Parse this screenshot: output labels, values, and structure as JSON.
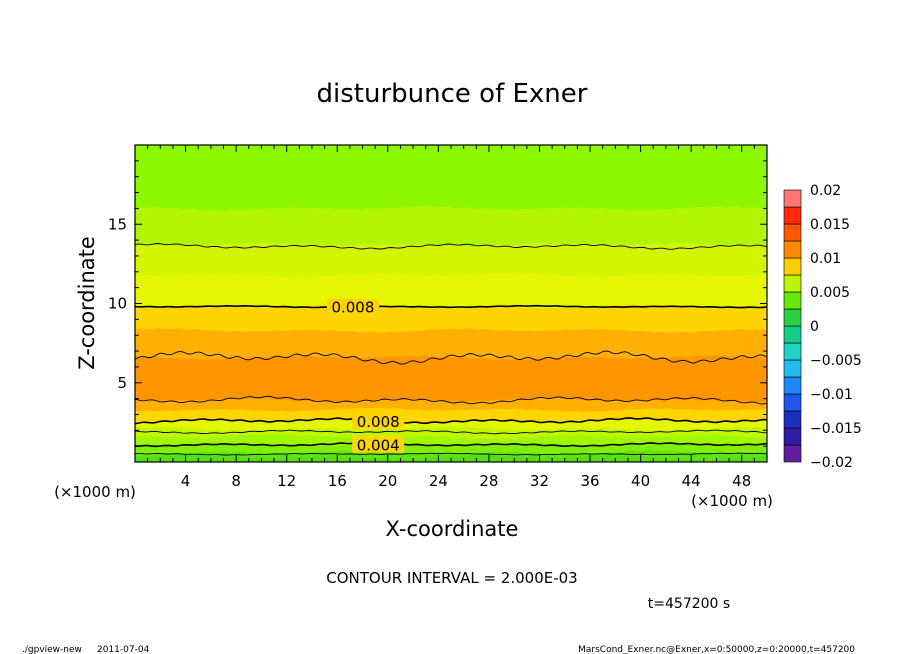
{
  "chart_data": {
    "type": "heatmap",
    "title": "disturbunce of Exner",
    "xlabel": "X-coordinate",
    "ylabel": "Z-coordinate",
    "x_unit": "(×1000 m)",
    "y_unit": "(×1000 m)",
    "xlim": [
      0,
      50
    ],
    "ylim": [
      0,
      20
    ],
    "x_ticks": [
      "4",
      "8",
      "12",
      "16",
      "20",
      "24",
      "28",
      "32",
      "36",
      "40",
      "44",
      "48"
    ],
    "y_ticks": [
      "5",
      "10",
      "15"
    ],
    "colorbar": {
      "ticks": [
        "0.02",
        "0.015",
        "0.01",
        "0.005",
        "0",
        "−0.005",
        "−0.01",
        "−0.015",
        "−0.02"
      ],
      "range": [
        -0.02,
        0.02
      ]
    },
    "bands": [
      {
        "z_top": 20.0,
        "value": 0.005
      },
      {
        "z_top": 16.0,
        "value": 0.006
      },
      {
        "z_top": 13.7,
        "value": 0.007
      },
      {
        "z_top": 11.8,
        "value": 0.0075
      },
      {
        "z_top": 9.8,
        "value": 0.0085
      },
      {
        "z_top": 8.3,
        "value": 0.0095
      },
      {
        "z_top": 6.6,
        "value": 0.0105
      },
      {
        "z_top": 3.9,
        "value": 0.0095
      },
      {
        "z_top": 3.3,
        "value": 0.0085
      },
      {
        "z_top": 2.6,
        "value": 0.0075
      },
      {
        "z_top": 2.1,
        "value": 0.0065
      },
      {
        "z_top": 1.6,
        "value": 0.0055
      },
      {
        "z_top": 1.1,
        "value": 0.0045
      },
      {
        "z_top": 0.6,
        "value": 0.0035
      },
      {
        "z_top": 0.3,
        "value": 0.003
      }
    ],
    "contours": [
      {
        "z": 13.6,
        "amp": 0.15,
        "major": false
      },
      {
        "z": 9.8,
        "amp": 0.05,
        "major": true,
        "label": "0.008",
        "label_x": 15.5
      },
      {
        "z": 6.6,
        "amp": 0.35,
        "major": false
      },
      {
        "z": 3.9,
        "amp": 0.2,
        "major": false
      },
      {
        "z": 2.6,
        "amp": 0.15,
        "major": true,
        "label": "0.008",
        "label_x": 17.5
      },
      {
        "z": 1.9,
        "amp": 0.1,
        "major": false
      },
      {
        "z": 1.1,
        "amp": 0.1,
        "major": true,
        "label": "0.004",
        "label_x": 17.5
      },
      {
        "z": 0.5,
        "amp": 0.05,
        "major": false
      }
    ]
  },
  "footer": {
    "contour_interval": "CONTOUR INTERVAL = 2.000E-03",
    "time": "t=457200 s",
    "program": "./gpview-new",
    "date": "2011-07-04",
    "source": "MarsCond_Exner.nc@Exner,x=0:50000,z=0:20000,t=457200"
  }
}
